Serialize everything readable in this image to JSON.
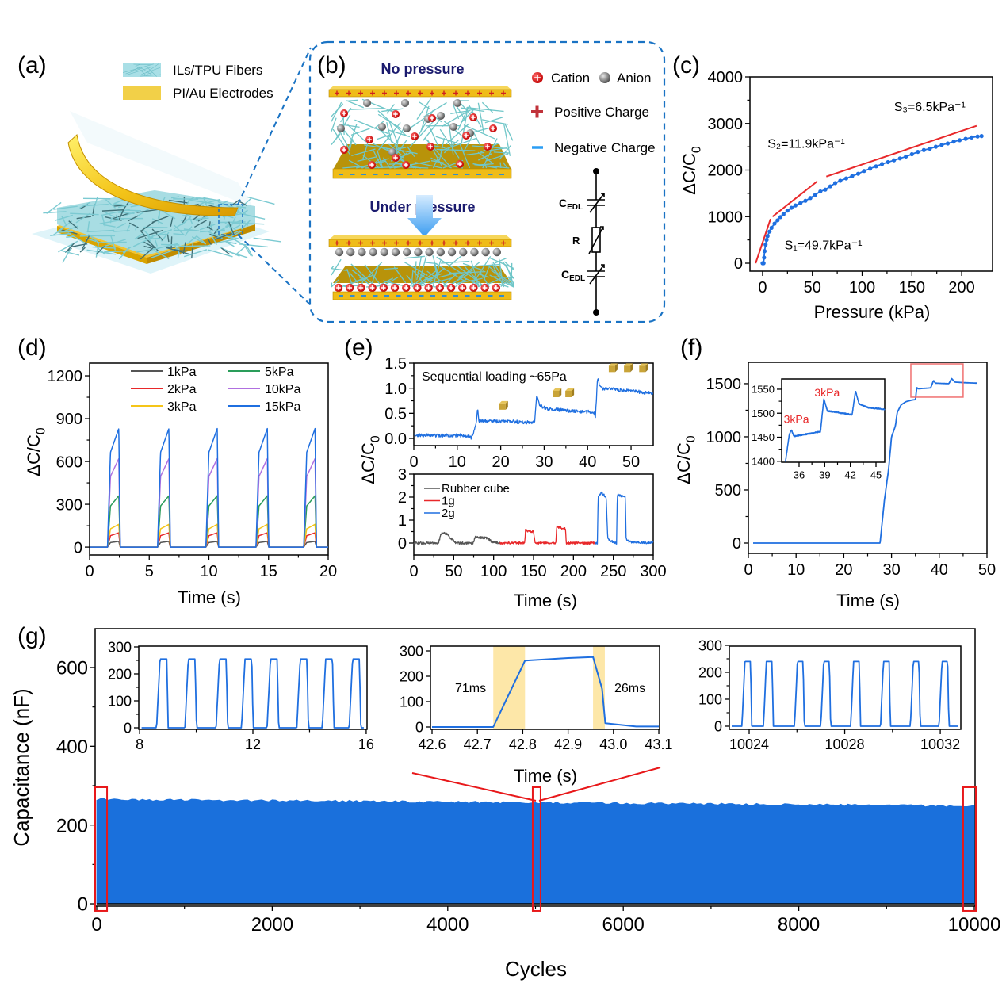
{
  "figure": {
    "panel_labels": [
      "(a)",
      "(b)",
      "(c)",
      "(d)",
      "(e)",
      "(f)",
      "(g)"
    ],
    "a": {
      "legend": [
        "ILs/TPU Fibers",
        "PI/Au Electrodes"
      ]
    },
    "b": {
      "no_pressure": "No pressure",
      "under_pressure": "Under pressure",
      "cation": "Cation",
      "anion": "Anion",
      "positive_charge": "Positive Charge",
      "negative_charge": "Negative Charge",
      "cedl_main": "C",
      "cedl_sub": "EDL",
      "resistor": "R"
    },
    "colors": {
      "blue": "#1f6fe0",
      "red": "#e8282a",
      "gold": "#f0c020",
      "fiber": "#7fd0d6",
      "dashed_frame": "#1a73c4"
    }
  },
  "chart_data": [
    {
      "id": "c",
      "type": "scatter",
      "xlabel": "Pressure (kPa)",
      "ylabel": "ΔC/C",
      "ylabel_sub": "0",
      "xlim": [
        -12.7,
        231
      ],
      "ylim": [
        -170,
        4000
      ],
      "xticks": [
        "0",
        "50",
        "100",
        "150",
        "200"
      ],
      "yticks": [
        "0",
        "1000",
        "2000",
        "3000",
        "4000"
      ],
      "points": [
        [
          0,
          0
        ],
        [
          1,
          0
        ],
        [
          1.5,
          120
        ],
        [
          2,
          260
        ],
        [
          3,
          400
        ],
        [
          4,
          500
        ],
        [
          5,
          580
        ],
        [
          7,
          680
        ],
        [
          9,
          760
        ],
        [
          12,
          850
        ],
        [
          15,
          920
        ],
        [
          18,
          990
        ],
        [
          21,
          1050
        ],
        [
          25,
          1130
        ],
        [
          29,
          1190
        ],
        [
          33,
          1240
        ],
        [
          38,
          1290
        ],
        [
          43,
          1340
        ],
        [
          48,
          1400
        ],
        [
          53,
          1470
        ],
        [
          58,
          1540
        ],
        [
          63,
          1580
        ],
        [
          68,
          1650
        ],
        [
          73,
          1720
        ],
        [
          78,
          1770
        ],
        [
          84,
          1820
        ],
        [
          90,
          1870
        ],
        [
          96,
          1920
        ],
        [
          102,
          1980
        ],
        [
          108,
          2030
        ],
        [
          114,
          2080
        ],
        [
          120,
          2130
        ],
        [
          126,
          2170
        ],
        [
          132,
          2210
        ],
        [
          138,
          2250
        ],
        [
          144,
          2290
        ],
        [
          150,
          2340
        ],
        [
          156,
          2390
        ],
        [
          162,
          2430
        ],
        [
          168,
          2460
        ],
        [
          174,
          2500
        ],
        [
          180,
          2540
        ],
        [
          186,
          2570
        ],
        [
          192,
          2610
        ],
        [
          198,
          2640
        ],
        [
          204,
          2670
        ],
        [
          210,
          2700
        ],
        [
          216,
          2720
        ],
        [
          220,
          2730
        ]
      ],
      "fits": [
        {
          "label": "S₁=49.7kPa⁻¹",
          "from": [
            -7,
            0
          ],
          "to": [
            8,
            950
          ],
          "label_at": [
            22,
            300
          ]
        },
        {
          "label": "S₂=11.9kPa⁻¹",
          "from": [
            10,
            1000
          ],
          "to": [
            55,
            1760
          ],
          "label_at": [
            5,
            2480
          ]
        },
        {
          "label": "S₃=6.5kPa⁻¹",
          "from": [
            64,
            1860
          ],
          "to": [
            215,
            2950
          ],
          "label_at": [
            132,
            3270
          ]
        }
      ]
    },
    {
      "id": "d",
      "type": "line",
      "xlabel": "Time (s)",
      "ylabel": "ΔC/C",
      "ylabel_sub": "0",
      "xlim": [
        0,
        20
      ],
      "ylim": [
        -55,
        1289
      ],
      "xticks": [
        "0",
        "5",
        "10",
        "15",
        "20"
      ],
      "yticks": [
        "0",
        "300",
        "600",
        "900",
        "1200"
      ],
      "pulse_centers": [
        2.05,
        6.25,
        10.3,
        14.5,
        18.5
      ],
      "series": [
        {
          "name": "1kPa",
          "peak": 40,
          "color": "#555555"
        },
        {
          "name": "2kPa",
          "peak": 100,
          "color": "#e8282a"
        },
        {
          "name": "3kPa",
          "peak": 160,
          "color": "#f5c518"
        },
        {
          "name": "5kPa",
          "peak": 360,
          "color": "#2a9d5a"
        },
        {
          "name": "10kPa",
          "peak": 620,
          "color": "#b070e0"
        },
        {
          "name": "15kPa",
          "peak": 830,
          "color": "#1f6fe0"
        }
      ]
    },
    {
      "id": "e_top",
      "type": "line",
      "annotation": "Sequential loading ~65Pa",
      "xlim": [
        0,
        55.1
      ],
      "ylim": [
        -0.142,
        1.5
      ],
      "xticks": [
        "0",
        "10",
        "20",
        "30",
        "40",
        "50"
      ],
      "yticks": [
        "0.0",
        "0.5",
        "1.0",
        "1.5"
      ],
      "noise": 0.035,
      "keypoints": [
        [
          0,
          0.06
        ],
        [
          12.9,
          0.06
        ],
        [
          13.2,
          0.0
        ],
        [
          14.3,
          0.28
        ],
        [
          14.7,
          0.6
        ],
        [
          15,
          0.35
        ],
        [
          27.8,
          0.32
        ],
        [
          28.3,
          0.85
        ],
        [
          29,
          0.65
        ],
        [
          31,
          0.58
        ],
        [
          41.5,
          0.52
        ],
        [
          41.8,
          0.45
        ],
        [
          42.3,
          1.2
        ],
        [
          43,
          1.0
        ],
        [
          55,
          0.9
        ]
      ],
      "weights": [
        [
          20.4,
          0.65
        ],
        [
          32.7,
          0.9
        ],
        [
          35.6,
          0.9
        ],
        [
          45.6,
          1.4
        ],
        [
          49.1,
          1.4
        ],
        [
          52.6,
          1.4
        ]
      ],
      "color": "#1f6fe0"
    },
    {
      "id": "e_bottom",
      "type": "line",
      "xlabel": "Time (s)",
      "ylabel": "ΔC/C",
      "ylabel_sub": "0",
      "xlim": [
        0,
        300
      ],
      "ylim": [
        -0.517,
        3
      ],
      "xticks": [
        "0",
        "50",
        "100",
        "150",
        "200",
        "250",
        "300"
      ],
      "yticks": [
        "0",
        "1",
        "2",
        "3"
      ],
      "noise": 0.05,
      "series": [
        {
          "name": "Rubber cube",
          "color": "#555555",
          "keypoints": [
            [
              0,
              0
            ],
            [
              31,
              0
            ],
            [
              34,
              0.4
            ],
            [
              40,
              0.42
            ],
            [
              50,
              0.1
            ],
            [
              53,
              0
            ],
            [
              74,
              0
            ],
            [
              77,
              0.25
            ],
            [
              92,
              0.22
            ],
            [
              98,
              0.05
            ],
            [
              108,
              0
            ]
          ]
        },
        {
          "name": "1g",
          "color": "#e8282a",
          "keypoints": [
            [
              108,
              0
            ],
            [
              139,
              0
            ],
            [
              140,
              0.55
            ],
            [
              150,
              0.48
            ],
            [
              152,
              0
            ],
            [
              178,
              0
            ],
            [
              179,
              0.7
            ],
            [
              190,
              0.62
            ],
            [
              191,
              0
            ],
            [
              228,
              0
            ]
          ]
        },
        {
          "name": "2g",
          "color": "#1f6fe0",
          "keypoints": [
            [
              228,
              0
            ],
            [
              230,
              0
            ],
            [
              231,
              2.0
            ],
            [
              235,
              2.2
            ],
            [
              241,
              2.0
            ],
            [
              243,
              0.2
            ],
            [
              246,
              0.1
            ],
            [
              254,
              0
            ],
            [
              255,
              2.1
            ],
            [
              265,
              2.0
            ],
            [
              266,
              0.2
            ],
            [
              270,
              0.05
            ],
            [
              300,
              0
            ]
          ]
        }
      ]
    },
    {
      "id": "f",
      "type": "line",
      "xlabel": "Time (s)",
      "ylabel": "ΔC/C",
      "ylabel_sub": "0",
      "xlim": [
        0,
        50
      ],
      "ylim": [
        -97,
        1701
      ],
      "xticks": [
        "0",
        "10",
        "20",
        "30",
        "40",
        "50"
      ],
      "yticks": [
        "0",
        "500",
        "1000",
        "1500"
      ],
      "keypoints": [
        [
          1,
          0
        ],
        [
          27.6,
          0
        ],
        [
          28.5,
          400
        ],
        [
          29.4,
          700
        ],
        [
          30,
          1000
        ],
        [
          30.8,
          1100
        ],
        [
          31.2,
          1230
        ],
        [
          32,
          1300
        ],
        [
          33,
          1330
        ],
        [
          34.2,
          1345
        ],
        [
          35,
          1350
        ],
        [
          35.3,
          1463
        ],
        [
          35.6,
          1452
        ],
        [
          38.2,
          1460
        ],
        [
          38.8,
          1530
        ],
        [
          39.2,
          1505
        ],
        [
          42,
          1500
        ],
        [
          42.6,
          1548
        ],
        [
          43.3,
          1515
        ],
        [
          45,
          1510
        ],
        [
          48,
          1505
        ]
      ],
      "color": "#1f6fe0",
      "highlight": {
        "x": [
          34.05,
          45.0
        ],
        "y": [
          1373,
          1686
        ]
      }
    },
    {
      "id": "f_inset",
      "type": "line",
      "xlim": [
        33.96,
        46.02
      ],
      "ylim": [
        1398,
        1571.4
      ],
      "xticks": [
        "36",
        "39",
        "42",
        "45"
      ],
      "yticks": [
        "1400",
        "1450",
        "1500",
        "1550"
      ],
      "annotations": [
        {
          "text": "3kPa",
          "at": [
            34.2,
            1480
          ]
        },
        {
          "text": "3kPa",
          "at": [
            37.8,
            1535
          ]
        }
      ],
      "keypoints": [
        [
          34.4,
          1398
        ],
        [
          34.85,
          1455
        ],
        [
          35.1,
          1465
        ],
        [
          35.4,
          1452
        ],
        [
          38,
          1460
        ],
        [
          38.5,
          1462
        ],
        [
          38.9,
          1530
        ],
        [
          39.3,
          1505
        ],
        [
          41.8,
          1498
        ],
        [
          42.2,
          1496
        ],
        [
          42.6,
          1547
        ],
        [
          43,
          1520
        ],
        [
          44,
          1512
        ],
        [
          46,
          1508
        ]
      ],
      "noise": 1.2,
      "color": "#1f6fe0"
    },
    {
      "id": "g",
      "type": "area",
      "xlabel": "Cycles",
      "ylabel": "Capacitance (nF)",
      "xlim": [
        -18,
        10009
      ],
      "ylim": [
        -6,
        698.6
      ],
      "xticks": [
        "0",
        "2000",
        "4000",
        "6000",
        "8000",
        "10000"
      ],
      "yticks": [
        "0",
        "200",
        "400",
        "600"
      ],
      "capacitance_start": 265,
      "capacitance_end": 248,
      "noise": 3,
      "color": "#1a70dc",
      "highlights": [
        {
          "x": [
            -18,
            118
          ],
          "y": [
            -18,
            296
          ]
        },
        {
          "x": [
            4968,
            5058
          ],
          "y": [
            -18,
            296
          ]
        },
        {
          "x": [
            9873,
            10018
          ],
          "y": [
            -18,
            296
          ]
        }
      ]
    },
    {
      "id": "g_inset1",
      "type": "line",
      "xlim": [
        7.97,
        16.03
      ],
      "ylim": [
        -5.9,
        302.9
      ],
      "xticks": [
        "8",
        "12",
        "16"
      ],
      "yticks": [
        "0",
        "100",
        "200",
        "300"
      ],
      "peaks": [
        8.8,
        9.8,
        10.9,
        11.8,
        12.7,
        13.75,
        14.65,
        15.6
      ],
      "peak_value": 255,
      "color": "#1f6fe0"
    },
    {
      "id": "g_inset2",
      "type": "line",
      "xlabel": "Time (s)",
      "xlim": [
        42.5965,
        43.1017
      ],
      "ylim": [
        -9.4,
        318.75
      ],
      "xticks": [
        "42.6",
        "42.7",
        "42.8",
        "42.9",
        "43.0",
        "43.1"
      ],
      "yticks": [
        "0",
        "100",
        "200",
        "300"
      ],
      "keypoints": [
        [
          42.6,
          0
        ],
        [
          42.735,
          0
        ],
        [
          42.805,
          262
        ],
        [
          42.9,
          272
        ],
        [
          42.955,
          276
        ],
        [
          42.975,
          150
        ],
        [
          42.982,
          15
        ],
        [
          43.05,
          2
        ],
        [
          43.1,
          2
        ]
      ],
      "bands": [
        {
          "x": [
            42.735,
            42.805
          ],
          "label": "71ms"
        },
        {
          "x": [
            42.955,
            42.981
          ],
          "label": "26ms"
        }
      ],
      "band_color": "#fde7a8",
      "color": "#1f6fe0"
    },
    {
      "id": "g_inset3",
      "type": "line",
      "xlim": [
        10023.17,
        10032.86
      ],
      "ylim": [
        -11.8,
        297
      ],
      "xticks": [
        "10024",
        "10028",
        "10032"
      ],
      "yticks": [
        "0",
        "100",
        "200",
        "300"
      ],
      "peaks": [
        10023.9,
        10024.8,
        10026.1,
        10027.2,
        10028.45,
        10029.7,
        10030.95,
        10032.15
      ],
      "peak_value": 240,
      "color": "#1f6fe0"
    }
  ]
}
